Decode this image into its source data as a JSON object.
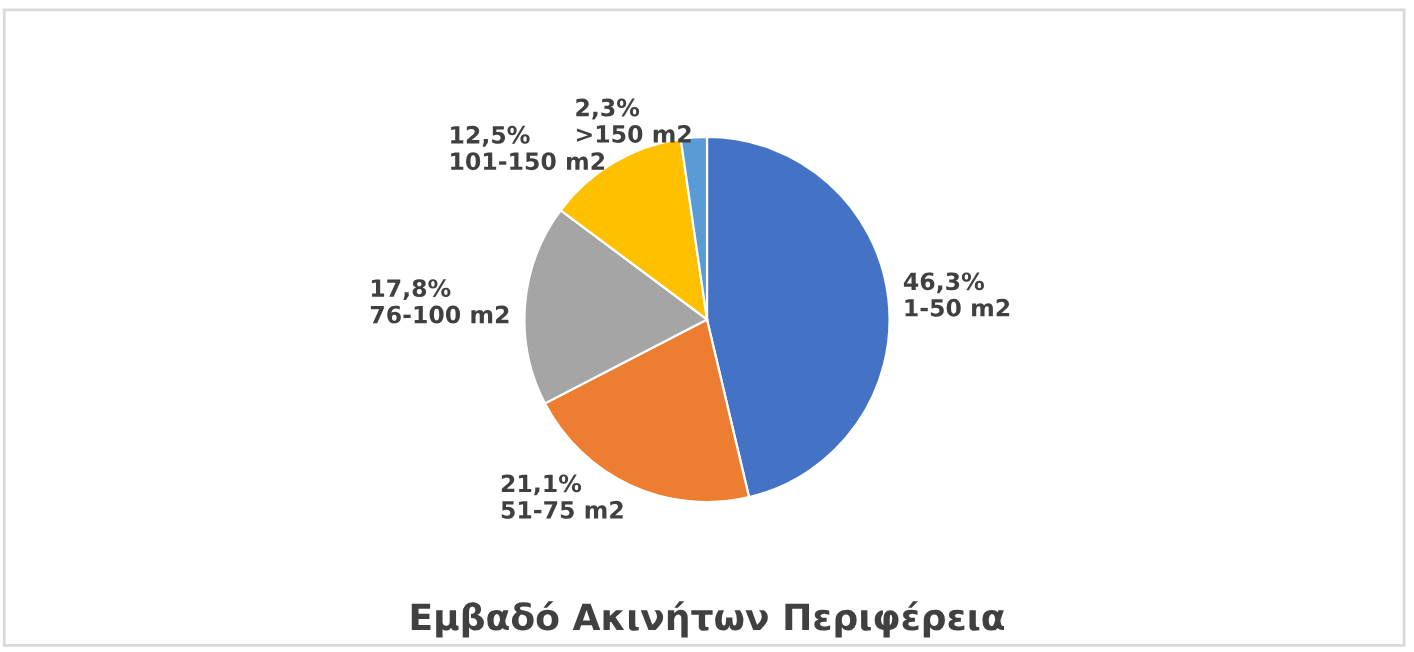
{
  "chart_data": {
    "type": "pie",
    "title": "Εμβαδό Ακινήτων Περιφέρεια",
    "categories": [
      "1-50 m2",
      "51-75 m2",
      "76-100 m2",
      "101-150 m2",
      ">150 m2"
    ],
    "values": [
      46.3,
      21.1,
      17.8,
      12.5,
      2.3
    ],
    "value_labels": [
      "46,3%",
      "21,1%",
      "17,8%",
      "12,5%",
      "2,3%"
    ],
    "colors": [
      "#4472c4",
      "#ed7d31",
      "#a5a5a5",
      "#ffc000",
      "#5b9bd5"
    ]
  }
}
